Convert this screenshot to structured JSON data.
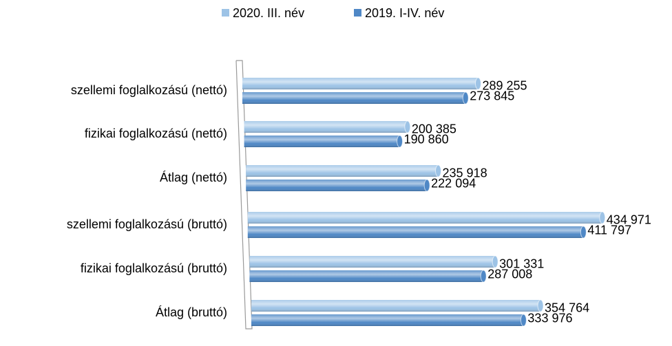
{
  "chart_data": {
    "type": "bar",
    "orientation": "horizontal",
    "categories": [
      "szellemi foglalkozású (nettó)",
      "fizikai foglalkozású (nettó)",
      "Átlag (nettó)",
      "szellemi foglalkozású (bruttó)",
      "fizikai foglalkozású (bruttó)",
      "Átlag (bruttó)"
    ],
    "series": [
      {
        "name": "2020. III. név",
        "color": "#9dc3e6",
        "values": [
          289255,
          200385,
          235918,
          434971,
          301331,
          354764
        ],
        "value_labels": [
          "289 255",
          "200 385",
          "235 918",
          "434 971",
          "301 331",
          "354 764"
        ]
      },
      {
        "name": "2019. I-IV. név",
        "color": "#4f88c6",
        "values": [
          273845,
          190860,
          222094,
          411797,
          287008,
          333976
        ],
        "value_labels": [
          "273 845",
          "190 860",
          "222 094",
          "411 797",
          "287 008",
          "333 976"
        ]
      }
    ],
    "legend": "top"
  }
}
